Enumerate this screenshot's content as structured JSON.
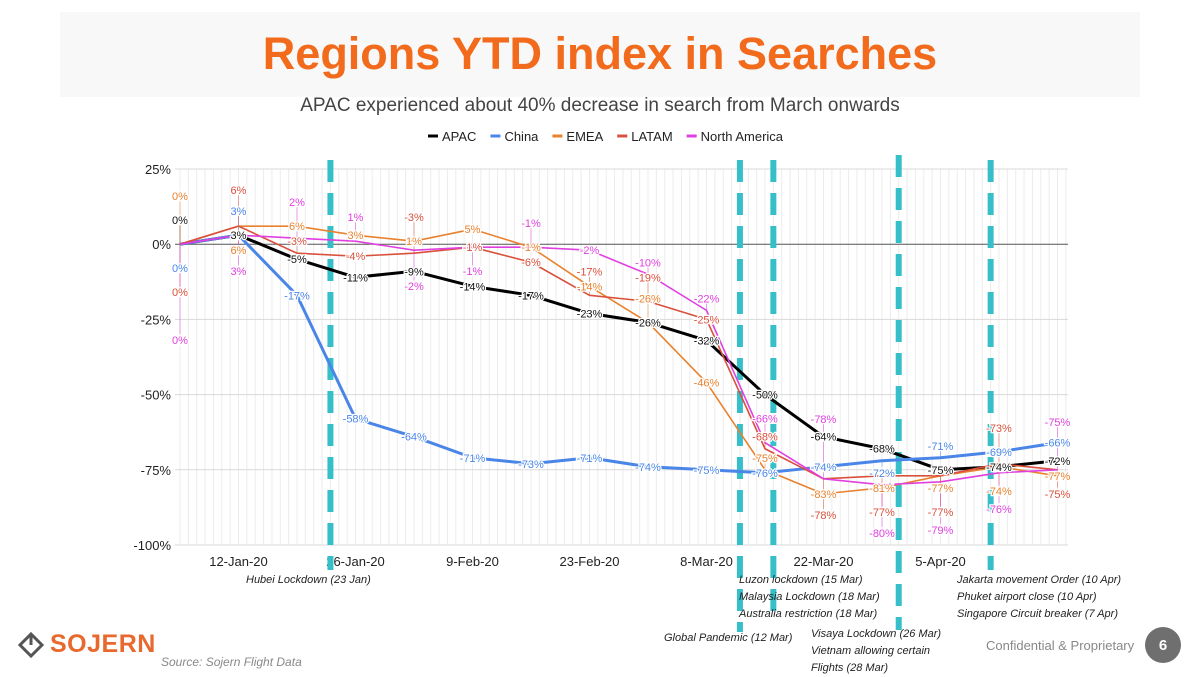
{
  "title": "Regions YTD index in Searches",
  "subtitle": "APAC experienced about 40% decrease in search from March onwards",
  "chart_data": {
    "type": "line",
    "title": "Regions YTD index in Searches",
    "subtitle": "APAC experienced about 40% decrease in search from March onwards",
    "x": [
      "5-Jan-20",
      "12-Jan-20",
      "19-Jan-20",
      "26-Jan-20",
      "2-Feb-20",
      "9-Feb-20",
      "16-Feb-20",
      "23-Feb-20",
      "1-Mar-20",
      "8-Mar-20",
      "15-Mar-20",
      "22-Mar-20",
      "29-Mar-20",
      "5-Apr-20",
      "12-Apr-20",
      "19-Apr-20"
    ],
    "x_tick_labels": [
      "12-Jan-20",
      "26-Jan-20",
      "9-Feb-20",
      "23-Feb-20",
      "8-Mar-20",
      "22-Mar-20",
      "5-Apr-20"
    ],
    "y_tick_labels": [
      "25%",
      "0%",
      "-25%",
      "-50%",
      "-75%",
      "-100%"
    ],
    "ylim": [
      -100,
      25
    ],
    "y_unit": "%",
    "grid": true,
    "legend_position": "top",
    "series": [
      {
        "name": "APAC",
        "color": "#000000",
        "values": [
          0,
          3,
          -5,
          -11,
          -9,
          -14,
          -17,
          -23,
          -26,
          -32,
          -50,
          -64,
          -68,
          -75,
          -74,
          -72
        ]
      },
      {
        "name": "China",
        "color": "#4a86e8",
        "values": [
          0,
          3,
          -17,
          -58,
          -64,
          -71,
          -73,
          -71,
          -74,
          -75,
          -76,
          -74,
          -72,
          -71,
          -69,
          -66
        ]
      },
      {
        "name": "EMEA",
        "color": "#e8822e",
        "values": [
          0,
          6,
          6,
          3,
          1,
          5,
          -1,
          -14,
          -26,
          -46,
          -75,
          -83,
          -81,
          -77,
          -74,
          -77
        ]
      },
      {
        "name": "LATAM",
        "color": "#d9503c",
        "values": [
          0,
          6,
          -3,
          -4,
          -3,
          -1,
          -6,
          -17,
          -19,
          -25,
          -68,
          -78,
          -77,
          -77,
          -73,
          -75
        ]
      },
      {
        "name": "North America",
        "color": "#e040e0",
        "values": [
          0,
          3,
          2,
          1,
          -2,
          -1,
          -1,
          -2,
          -10,
          -22,
          -66,
          -78,
          -80,
          -79,
          -76,
          -75
        ]
      }
    ],
    "event_marker_color": "#36bfc9",
    "events": [
      {
        "date": "23-Jan-20",
        "labels": [
          "Hubei Lockdown (23 Jan)"
        ]
      },
      {
        "date": "12-Mar-20",
        "labels": [
          "Global Pandemic (12 Mar)"
        ]
      },
      {
        "date": "16-Mar-20",
        "labels": [
          "Luzon lockdown (15 Mar)",
          "Malaysia Lockdown (18 Mar)",
          "Australia restriction (18 Mar)"
        ]
      },
      {
        "date": "31-Mar-20",
        "labels": [
          "Visaya Lockdown (26 Mar)",
          "Vietnam allowing certain",
          "Flights (28 Mar)"
        ]
      },
      {
        "date": "11-Apr-20",
        "labels": [
          "Jakarta movement Order (10 Apr)",
          "Phuket airport close (10 Apr)",
          "Singapore Circuit breaker (7 Apr)"
        ]
      }
    ]
  },
  "footer": {
    "logo": "SOJERN",
    "source": "Source: Sojern Flight Data",
    "confidential": "Confidential & Proprietary",
    "page": "6",
    "brand_color": "#e8692d"
  }
}
